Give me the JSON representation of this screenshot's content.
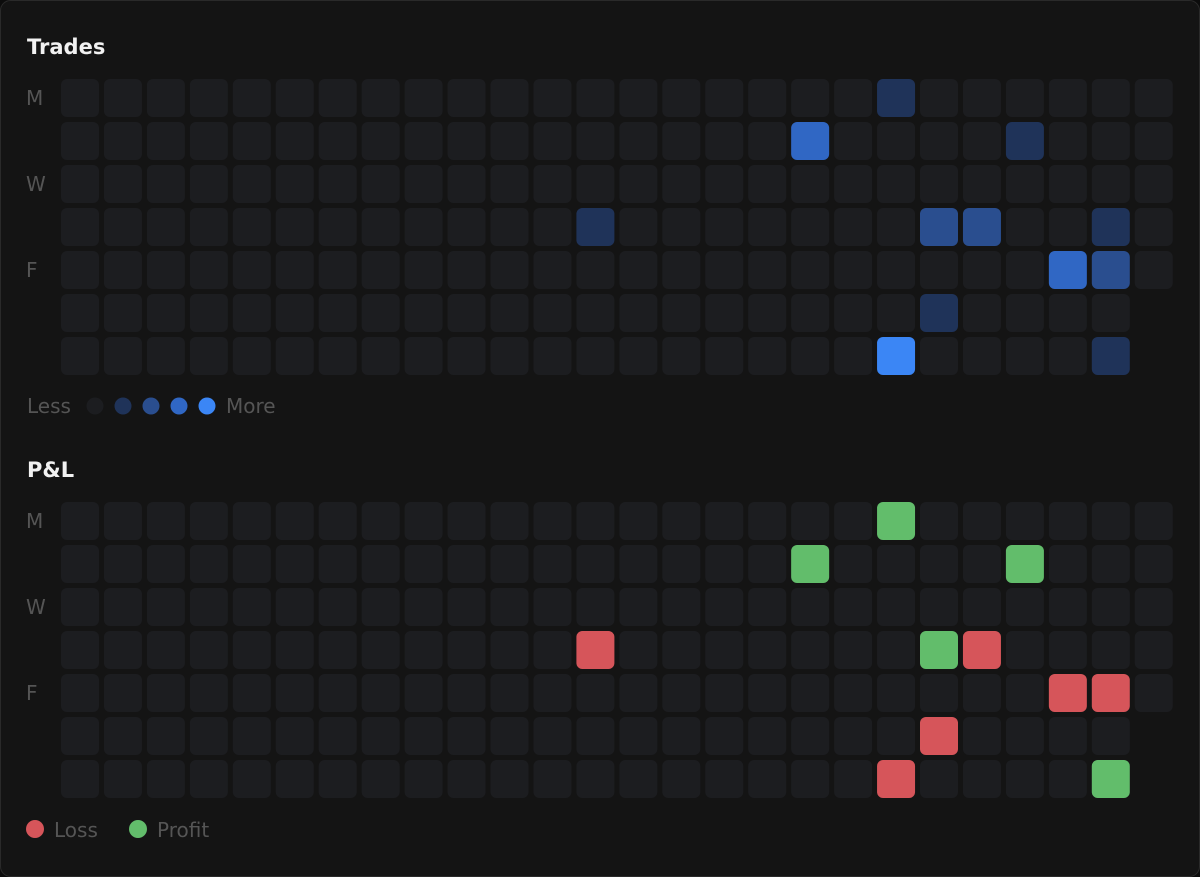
{
  "trades": {
    "title": "Trades",
    "day_labels": [
      "M",
      null,
      "W",
      null,
      "F",
      null,
      null
    ],
    "values": [
      [
        0,
        0,
        0,
        0,
        0,
        0,
        0,
        0,
        0,
        0,
        0,
        0,
        0,
        0,
        0,
        0,
        0,
        0,
        0,
        1,
        0,
        0,
        0,
        0,
        0,
        0
      ],
      [
        0,
        0,
        0,
        0,
        0,
        0,
        0,
        0,
        0,
        0,
        0,
        0,
        0,
        0,
        0,
        0,
        0,
        3,
        0,
        0,
        0,
        0,
        1,
        0,
        0,
        0
      ],
      [
        0,
        0,
        0,
        0,
        0,
        0,
        0,
        0,
        0,
        0,
        0,
        0,
        0,
        0,
        0,
        0,
        0,
        0,
        0,
        0,
        0,
        0,
        0,
        0,
        0,
        0
      ],
      [
        0,
        0,
        0,
        0,
        0,
        0,
        0,
        0,
        0,
        0,
        0,
        0,
        1,
        0,
        0,
        0,
        0,
        0,
        0,
        0,
        2,
        2,
        0,
        0,
        1,
        0
      ],
      [
        0,
        0,
        0,
        0,
        0,
        0,
        0,
        0,
        0,
        0,
        0,
        0,
        0,
        0,
        0,
        0,
        0,
        0,
        0,
        0,
        0,
        0,
        0,
        3,
        2,
        0
      ],
      [
        0,
        0,
        0,
        0,
        0,
        0,
        0,
        0,
        0,
        0,
        0,
        0,
        0,
        0,
        0,
        0,
        0,
        0,
        0,
        0,
        1,
        0,
        0,
        0,
        0,
        null
      ],
      [
        0,
        0,
        0,
        0,
        0,
        0,
        0,
        0,
        0,
        0,
        0,
        0,
        0,
        0,
        0,
        0,
        0,
        0,
        0,
        4,
        0,
        0,
        0,
        0,
        1,
        null
      ]
    ],
    "levels": [
      0,
      1,
      2,
      3,
      4
    ],
    "colors": [
      "#1c1d20",
      "#1f3359",
      "#2a4e8f",
      "#3067c4",
      "#3b86f5"
    ],
    "legend": {
      "less": "Less",
      "more": "More"
    }
  },
  "pnl": {
    "title": "P&L",
    "day_labels": [
      "M",
      null,
      "W",
      null,
      "F",
      null,
      null
    ],
    "values": [
      [
        0,
        0,
        0,
        0,
        0,
        0,
        0,
        0,
        0,
        0,
        0,
        0,
        0,
        0,
        0,
        0,
        0,
        0,
        0,
        1,
        0,
        0,
        0,
        0,
        0,
        0
      ],
      [
        0,
        0,
        0,
        0,
        0,
        0,
        0,
        0,
        0,
        0,
        0,
        0,
        0,
        0,
        0,
        0,
        0,
        1,
        0,
        0,
        0,
        0,
        1,
        0,
        0,
        0
      ],
      [
        0,
        0,
        0,
        0,
        0,
        0,
        0,
        0,
        0,
        0,
        0,
        0,
        0,
        0,
        0,
        0,
        0,
        0,
        0,
        0,
        0,
        0,
        0,
        0,
        0,
        0
      ],
      [
        0,
        0,
        0,
        0,
        0,
        0,
        0,
        0,
        0,
        0,
        0,
        0,
        -1,
        0,
        0,
        0,
        0,
        0,
        0,
        0,
        1,
        -1,
        0,
        0,
        0,
        0
      ],
      [
        0,
        0,
        0,
        0,
        0,
        0,
        0,
        0,
        0,
        0,
        0,
        0,
        0,
        0,
        0,
        0,
        0,
        0,
        0,
        0,
        0,
        0,
        0,
        -1,
        -1,
        0
      ],
      [
        0,
        0,
        0,
        0,
        0,
        0,
        0,
        0,
        0,
        0,
        0,
        0,
        0,
        0,
        0,
        0,
        0,
        0,
        0,
        0,
        -1,
        0,
        0,
        0,
        0,
        null
      ],
      [
        0,
        0,
        0,
        0,
        0,
        0,
        0,
        0,
        0,
        0,
        0,
        0,
        0,
        0,
        0,
        0,
        0,
        0,
        0,
        -1,
        0,
        0,
        0,
        0,
        1,
        null
      ]
    ],
    "empty_color": "#1c1d20",
    "legend": [
      {
        "name": "Loss",
        "value": -1,
        "color": "#d6555a"
      },
      {
        "name": "Profit",
        "value": 1,
        "color": "#62bd6b"
      }
    ]
  }
}
